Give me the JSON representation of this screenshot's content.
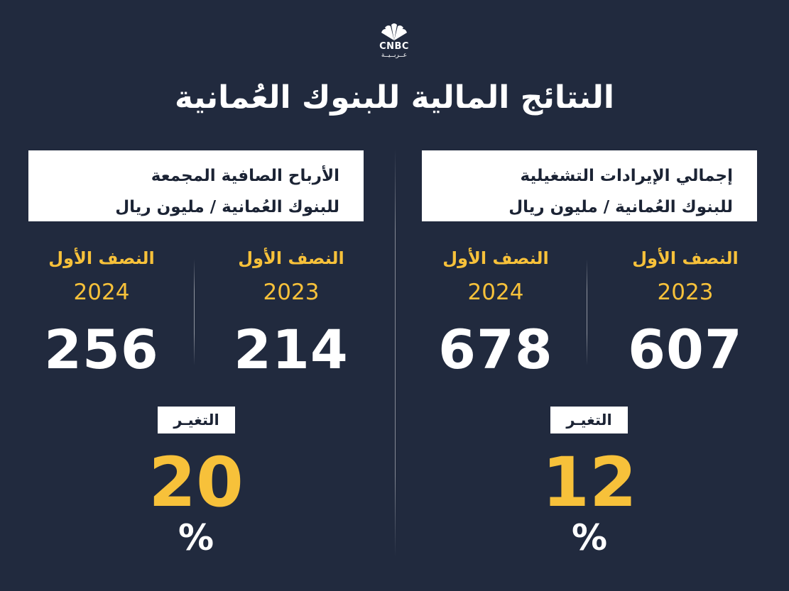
{
  "brand": {
    "name": "CNBC",
    "sub": "عــربــيــة"
  },
  "title": "النتائج المالية للبنوك العُمانية",
  "labels": {
    "half": "النصف الأول",
    "change": "التغيـر",
    "percent": "%"
  },
  "panels": {
    "revenue": {
      "title_line1": "إجمالي الإيرادات التشغيلية",
      "title_line2": "للبنوك العُمانية / مليون ريال",
      "year_a": "2023",
      "value_a": "607",
      "year_b": "2024",
      "value_b": "678",
      "change": "12"
    },
    "profit": {
      "title_line1": "الأرباح الصافية المجمعة",
      "title_line2": "للبنوك العُمانية / مليون ريال",
      "year_a": "2023",
      "value_a": "214",
      "year_b": "2024",
      "value_b": "256",
      "change": "20"
    }
  },
  "colors": {
    "background": "#212a3e",
    "accent": "#f7c13a",
    "text": "#ffffff",
    "box": "#ffffff"
  }
}
